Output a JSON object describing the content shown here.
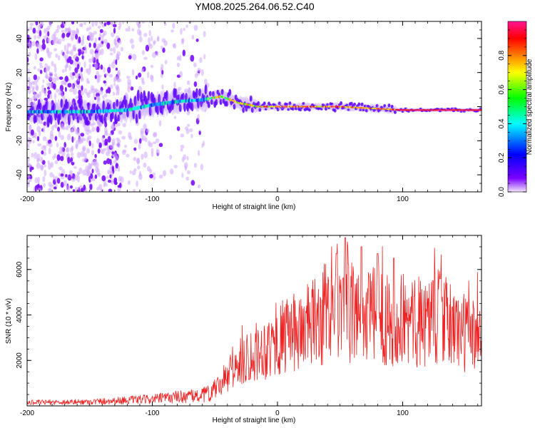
{
  "title": "YM08.2025.264.06.52.C40",
  "chart_data": [
    {
      "type": "heatmap",
      "xlabel": "Height of straight line (km)",
      "ylabel": "Frequency (Hz)",
      "xlim": [
        -200,
        163
      ],
      "ylim": [
        -50,
        50
      ],
      "xticks": [
        -200,
        -100,
        0,
        100
      ],
      "yticks": [
        -40,
        -20,
        0,
        20,
        40
      ],
      "ridge": [
        {
          "x": -200,
          "y": -3
        },
        {
          "x": -150,
          "y": -3
        },
        {
          "x": -120,
          "y": -2
        },
        {
          "x": -100,
          "y": 1
        },
        {
          "x": -80,
          "y": 3
        },
        {
          "x": -60,
          "y": 4
        },
        {
          "x": -45,
          "y": 6
        },
        {
          "x": -30,
          "y": 2
        },
        {
          "x": -15,
          "y": 0
        },
        {
          "x": 0,
          "y": 0
        },
        {
          "x": 50,
          "y": 0
        },
        {
          "x": 100,
          "y": -2
        },
        {
          "x": 163,
          "y": -2
        }
      ]
    },
    {
      "type": "colorbar",
      "label": "Normalized spectral amplitude",
      "range": [
        0,
        1
      ],
      "ticks": [
        0.0,
        0.2,
        0.4,
        0.6,
        0.8
      ],
      "tick_labels": [
        "0.0",
        "0.2",
        "0.4",
        "0.6",
        "0.8"
      ],
      "colormap": [
        "#f2e6ff",
        "#7a00ff",
        "#0000ff",
        "#00ffff",
        "#00ff00",
        "#ffff00",
        "#ff8000",
        "#ff0000",
        "#ff1493"
      ]
    },
    {
      "type": "line",
      "color": "#ee2222",
      "xlabel": "Height of straight line (km)",
      "ylabel": "SNR (10 * v/v)",
      "xlim": [
        -200,
        163
      ],
      "ylim": [
        0,
        7500
      ],
      "xticks": [
        -200,
        -100,
        0,
        100
      ],
      "yticks": [
        2000,
        4000,
        6000
      ],
      "envelope": [
        {
          "x": -200,
          "y": 150
        },
        {
          "x": -150,
          "y": 180
        },
        {
          "x": -120,
          "y": 250
        },
        {
          "x": -100,
          "y": 300
        },
        {
          "x": -80,
          "y": 400
        },
        {
          "x": -60,
          "y": 450
        },
        {
          "x": -50,
          "y": 700
        },
        {
          "x": -40,
          "y": 1200
        },
        {
          "x": -30,
          "y": 1900
        },
        {
          "x": -20,
          "y": 2300
        },
        {
          "x": 0,
          "y": 2800
        },
        {
          "x": 20,
          "y": 3400
        },
        {
          "x": 40,
          "y": 3900
        },
        {
          "x": 55,
          "y": 4100
        },
        {
          "x": 70,
          "y": 4000
        },
        {
          "x": 90,
          "y": 3900
        },
        {
          "x": 110,
          "y": 3600
        },
        {
          "x": 125,
          "y": 4000
        },
        {
          "x": 140,
          "y": 3500
        },
        {
          "x": 155,
          "y": 3100
        },
        {
          "x": 163,
          "y": 3500
        }
      ],
      "peaks": [
        {
          "x": 47,
          "y": 6700
        },
        {
          "x": 54,
          "y": 7400
        },
        {
          "x": 67,
          "y": 7000
        },
        {
          "x": 80,
          "y": 6700
        },
        {
          "x": 93,
          "y": 6500
        },
        {
          "x": 124,
          "y": 5500
        },
        {
          "x": 130,
          "y": 5600
        }
      ]
    }
  ]
}
